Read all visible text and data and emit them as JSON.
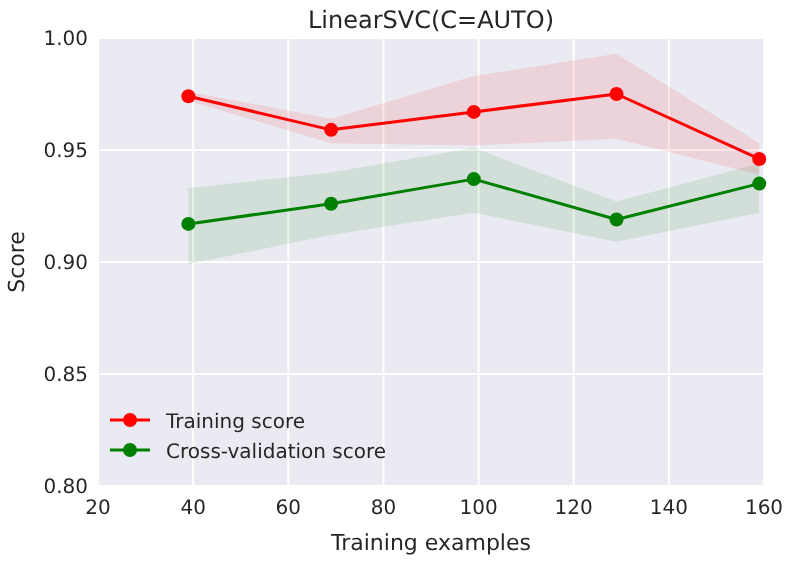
{
  "chart_data": {
    "type": "line",
    "title": "LinearSVC(C=AUTO)",
    "xlabel": "Training examples",
    "ylabel": "Score",
    "x": [
      39,
      69,
      99,
      129,
      159
    ],
    "series": [
      {
        "name": "Training score",
        "color": "#ff0000",
        "values": [
          0.974,
          0.959,
          0.967,
          0.975,
          0.946
        ],
        "lower": [
          0.972,
          0.953,
          0.952,
          0.955,
          0.939
        ],
        "upper": [
          0.976,
          0.964,
          0.983,
          0.993,
          0.953
        ]
      },
      {
        "name": "Cross-validation score",
        "color": "#008000",
        "values": [
          0.917,
          0.926,
          0.937,
          0.919,
          0.935
        ],
        "lower": [
          0.899,
          0.912,
          0.922,
          0.909,
          0.922
        ],
        "upper": [
          0.933,
          0.94,
          0.951,
          0.927,
          0.944
        ]
      }
    ],
    "xlim": [
      20,
      160
    ],
    "xticks": [
      20,
      40,
      60,
      80,
      100,
      120,
      140,
      160
    ],
    "ylim": [
      0.8,
      1.0
    ],
    "yticks": [
      {
        "value": 0.8,
        "label": "0.80"
      },
      {
        "value": 0.85,
        "label": "0.85"
      },
      {
        "value": 0.9,
        "label": "0.90"
      },
      {
        "value": 0.95,
        "label": "0.95"
      },
      {
        "value": 1.0,
        "label": "1.00"
      }
    ],
    "grid": true,
    "legend": "bottom left",
    "marker": "circle",
    "line_style": "solid"
  }
}
